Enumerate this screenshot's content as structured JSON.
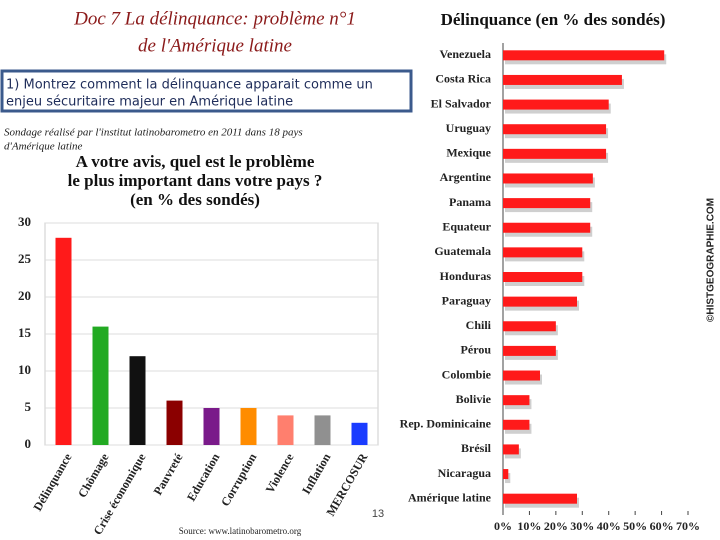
{
  "slide": {
    "title": [
      "Doc 7 La délinquance: problème n°1",
      "de l'Amérique latine"
    ],
    "question": [
      "1) Montrez comment la délinquance apparait comme un",
      "enjeu sécuritaire majeur en Amérique latine"
    ],
    "note": [
      "Sondage réalisé par l'institut latinobarometro en 2011 dans 18 pays",
      "d'Amérique latine"
    ],
    "copyright": "©HISTGEOGRAPHIE.COM",
    "page": "13",
    "source": "Source: www.latinobarometro.org"
  },
  "chart_data": [
    {
      "type": "bar",
      "orientation": "vertical",
      "title": [
        "A votre avis, quel est le problème",
        "le plus important dans votre pays ?",
        "(en % des sondés)"
      ],
      "categories": [
        "Délinquance",
        "Chômage",
        "Crise économique",
        "Pauvreté",
        "Education",
        "Corruption",
        "Violence",
        "Inflation",
        "MERCOSUR"
      ],
      "values": [
        28,
        16,
        12,
        6,
        5,
        5,
        4,
        4,
        3
      ],
      "colors": [
        "#ff1a1a",
        "#22aa22",
        "#111111",
        "#8b0000",
        "#7a1a8a",
        "#ff8c00",
        "#ff7f6e",
        "#909090",
        "#1a3cff"
      ],
      "ylim": [
        0,
        30
      ],
      "yticks": [
        0,
        5,
        10,
        15,
        20,
        25,
        30
      ],
      "grid": true
    },
    {
      "type": "bar",
      "orientation": "horizontal",
      "title": [
        "Délinquance (en % des sondés)"
      ],
      "categories": [
        "Venezuela",
        "Costa Rica",
        "El Salvador",
        "Uruguay",
        "Mexique",
        "Argentine",
        "Panama",
        "Equateur",
        "Guatemala",
        "Honduras",
        "Paraguay",
        "Chili",
        "Pérou",
        "Colombie",
        "Bolivie",
        "Rep. Dominicaine",
        "Brésil",
        "Nicaragua",
        "Amérique latine"
      ],
      "values": [
        61,
        45,
        40,
        39,
        39,
        34,
        33,
        33,
        30,
        30,
        28,
        20,
        20,
        14,
        10,
        10,
        6,
        2,
        28
      ],
      "color": "#ff1a1a",
      "xlim": [
        0,
        70
      ],
      "xticks": [
        {
          "value": 0,
          "label": "0%"
        },
        {
          "value": 10,
          "label": "10%"
        },
        {
          "value": 20,
          "label": "20%"
        },
        {
          "value": 30,
          "label": "30%"
        },
        {
          "value": 40,
          "label": "40%"
        },
        {
          "value": 50,
          "label": "50%"
        },
        {
          "value": 60,
          "label": "60%"
        },
        {
          "value": 70,
          "label": "70%"
        }
      ],
      "grid": false
    }
  ]
}
